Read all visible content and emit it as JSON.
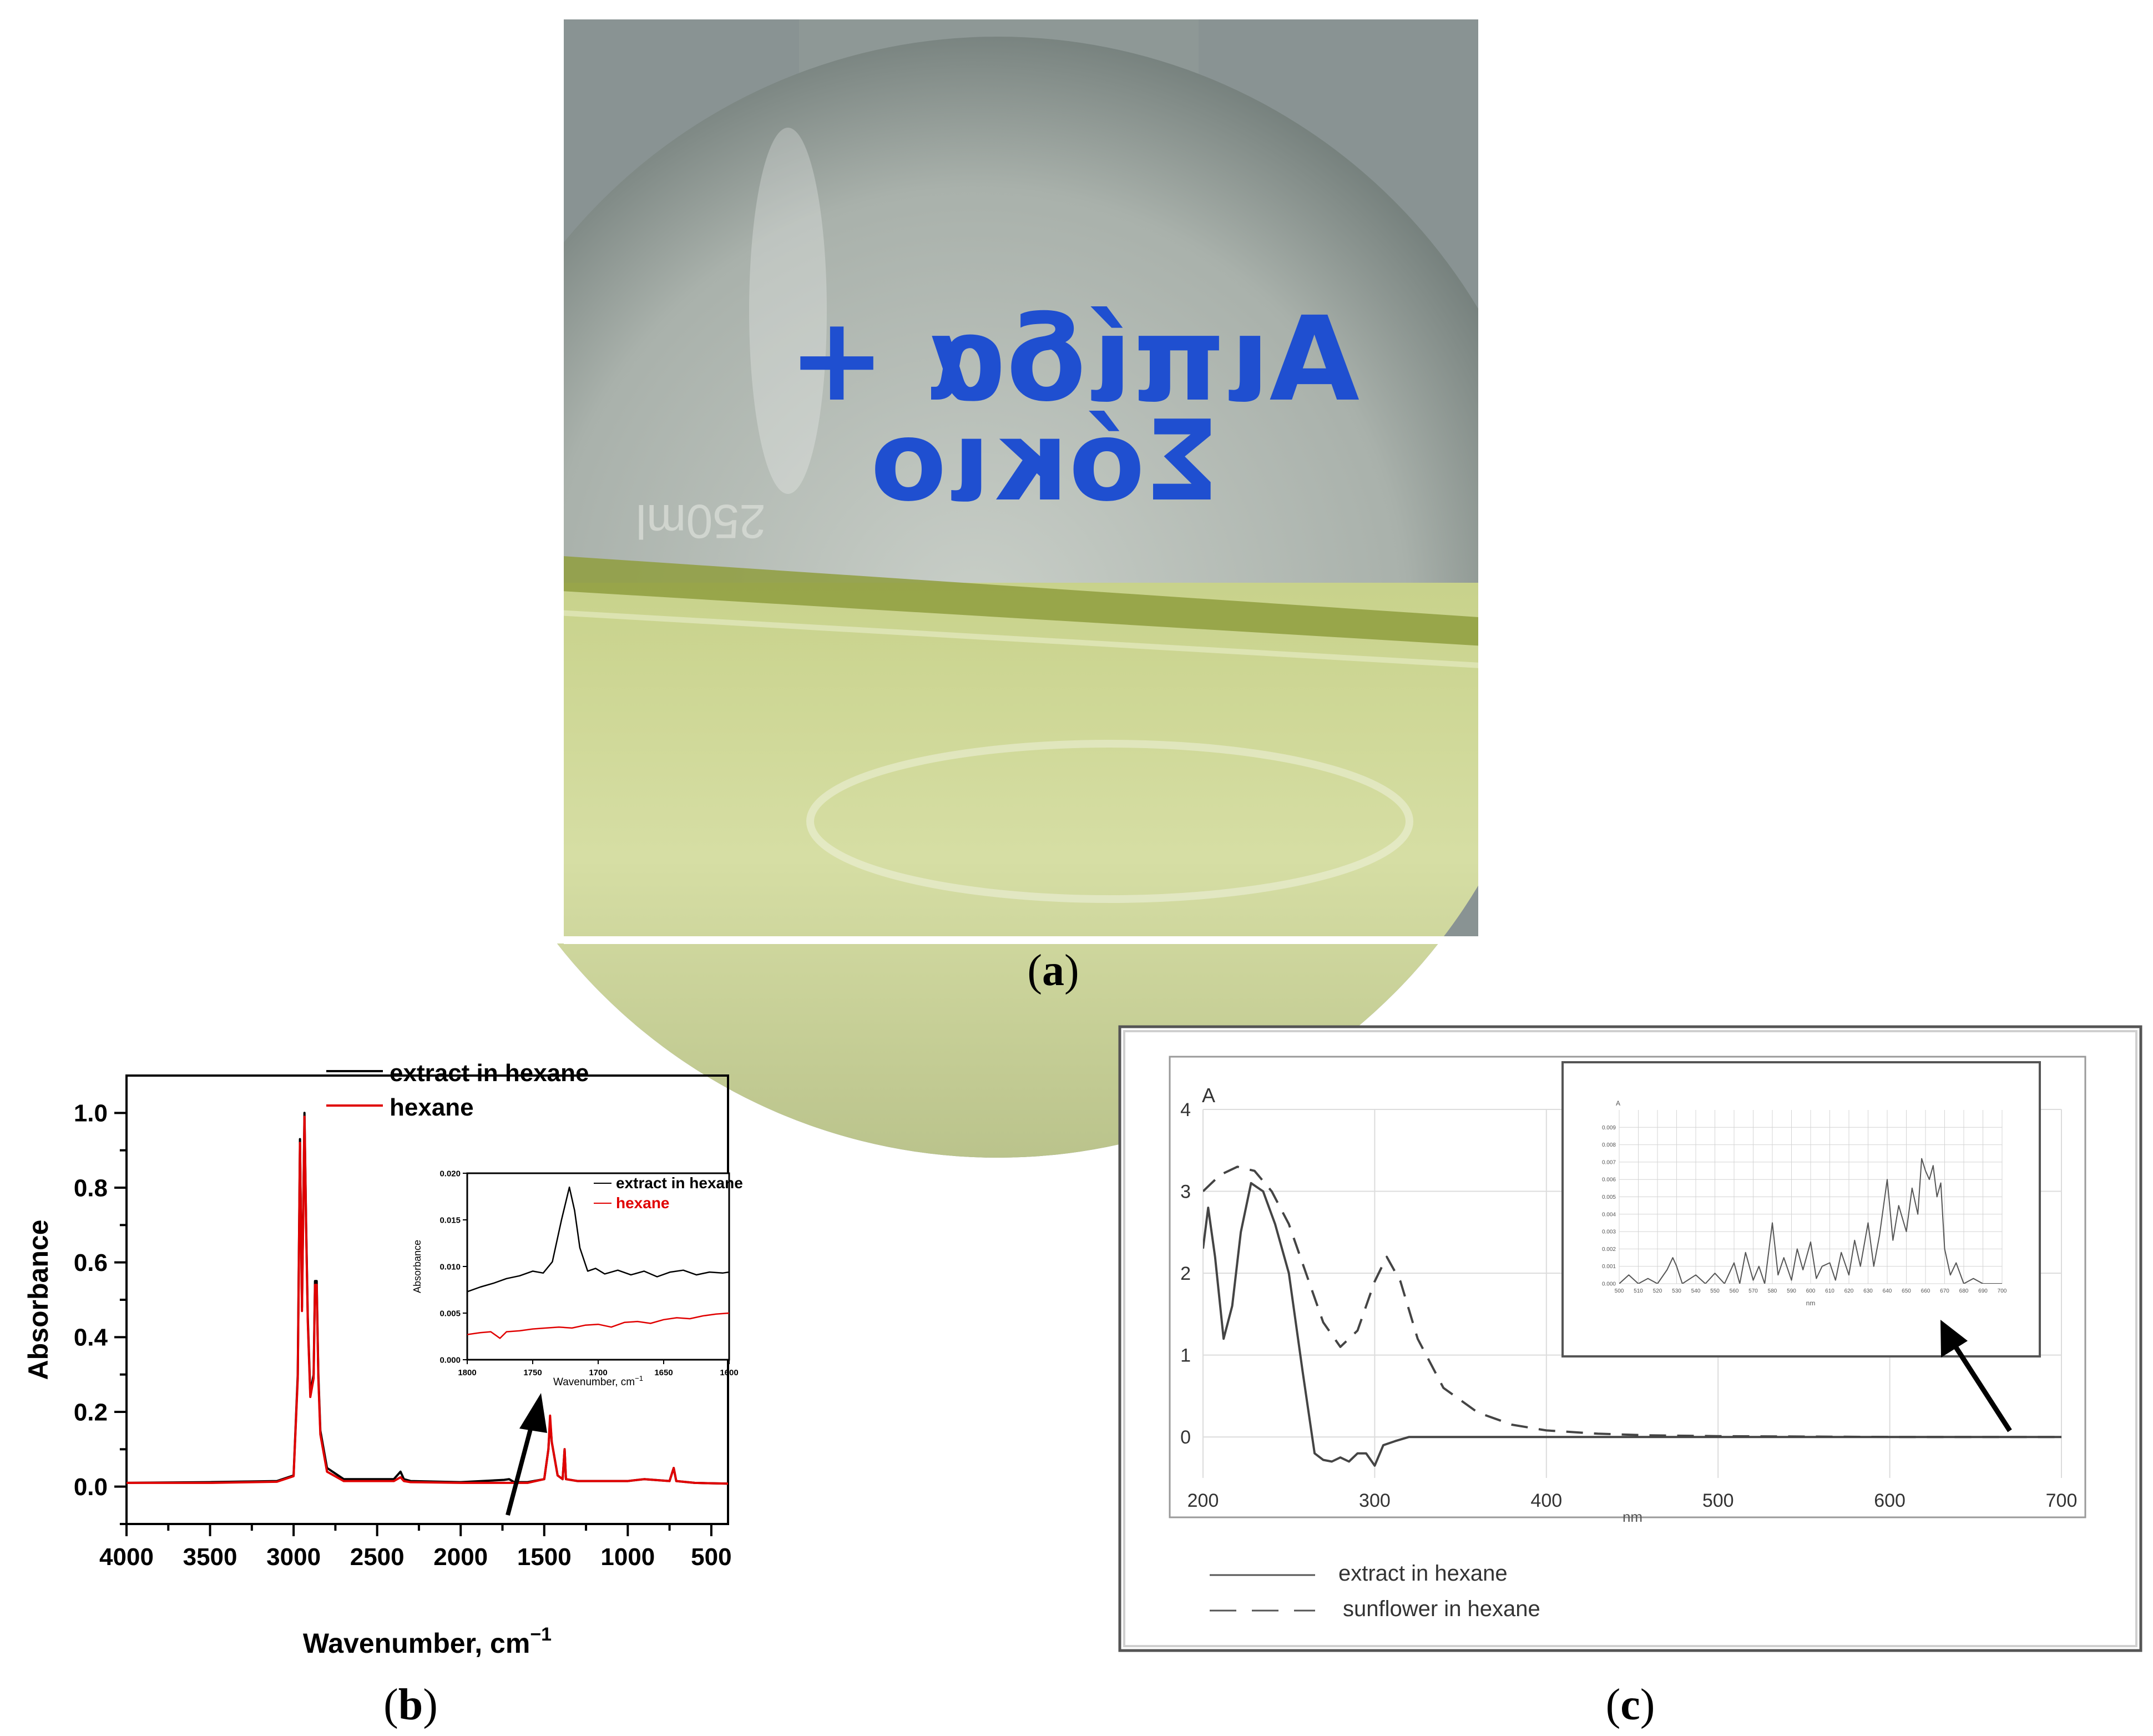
{
  "panel_labels": {
    "a": "a",
    "b": "b",
    "c": "c"
  },
  "photo": {
    "label_line1": "Αιπίδα +",
    "label_line2": "Σόκιο",
    "flask_mark": "250ml",
    "colors": {
      "background": "#6f7d7e",
      "liquid": "#d2db9a",
      "ink": "#1f4fd0",
      "surface_band": "#8f9d3e"
    }
  },
  "chart_data": [
    {
      "type": "line",
      "panel": "b",
      "xlabel": "Wavenumber, cm",
      "xlabel_sup": "−1",
      "ylabel": "Absorbance",
      "xlim": [
        4000,
        400
      ],
      "ylim": [
        -0.1,
        1.1
      ],
      "xticks": [
        4000,
        3500,
        3000,
        2500,
        2000,
        1500,
        1000,
        500
      ],
      "xtick_labels": [
        "4000",
        "3500",
        "3000",
        "2500",
        "2000",
        "1500",
        "1000",
        "500"
      ],
      "yticks": [
        0.0,
        0.2,
        0.4,
        0.6,
        0.8,
        1.0
      ],
      "ytick_labels": [
        "0.0",
        "0.2",
        "0.4",
        "0.6",
        "0.8",
        "1.0"
      ],
      "legend_position": "top-center",
      "series": [
        {
          "name": "extract in hexane",
          "color": "#000000",
          "x": [
            4000,
            3500,
            3100,
            3000,
            2975,
            2962,
            2950,
            2935,
            2925,
            2915,
            2900,
            2880,
            2872,
            2862,
            2852,
            2840,
            2800,
            2700,
            2400,
            2360,
            2340,
            2300,
            2000,
            1740,
            1710,
            1680,
            1600,
            1500,
            1475,
            1465,
            1455,
            1420,
            1390,
            1378,
            1370,
            1300,
            1000,
            900,
            750,
            725,
            710,
            600,
            400
          ],
          "y": [
            0.01,
            0.012,
            0.015,
            0.03,
            0.3,
            0.93,
            0.48,
            1.0,
            0.7,
            0.45,
            0.25,
            0.3,
            0.55,
            0.55,
            0.3,
            0.15,
            0.05,
            0.02,
            0.02,
            0.04,
            0.02,
            0.015,
            0.012,
            0.018,
            0.02,
            0.012,
            0.012,
            0.02,
            0.1,
            0.18,
            0.12,
            0.03,
            0.02,
            0.1,
            0.02,
            0.015,
            0.015,
            0.02,
            0.015,
            0.05,
            0.015,
            0.01,
            0.008
          ]
        },
        {
          "name": "hexane",
          "color": "#e00000",
          "x": [
            4000,
            3500,
            3100,
            3000,
            2975,
            2962,
            2950,
            2935,
            2925,
            2915,
            2900,
            2880,
            2872,
            2862,
            2852,
            2840,
            2800,
            2700,
            2400,
            2360,
            2340,
            2300,
            2000,
            1740,
            1710,
            1680,
            1600,
            1500,
            1475,
            1465,
            1455,
            1420,
            1390,
            1378,
            1370,
            1300,
            1000,
            900,
            750,
            725,
            710,
            600,
            400
          ],
          "y": [
            0.01,
            0.01,
            0.013,
            0.028,
            0.29,
            0.92,
            0.47,
            0.99,
            0.69,
            0.44,
            0.24,
            0.29,
            0.54,
            0.54,
            0.29,
            0.14,
            0.04,
            0.015,
            0.015,
            0.025,
            0.015,
            0.012,
            0.01,
            0.01,
            0.01,
            0.01,
            0.01,
            0.02,
            0.1,
            0.19,
            0.12,
            0.03,
            0.02,
            0.1,
            0.02,
            0.015,
            0.015,
            0.02,
            0.015,
            0.05,
            0.015,
            0.01,
            0.008
          ]
        }
      ]
    },
    {
      "type": "line",
      "panel": "b-inset",
      "xlabel": "Wavenumber, cm",
      "xlabel_sup": "−1",
      "ylabel": "Absorbance",
      "xlim": [
        1800,
        1600
      ],
      "ylim": [
        0.0,
        0.02
      ],
      "xticks": [
        1800,
        1750,
        1700,
        1650,
        1600
      ],
      "xtick_labels": [
        "1800",
        "1750",
        "1700",
        "1650",
        "1600"
      ],
      "yticks": [
        0.0,
        0.005,
        0.01,
        0.015,
        0.02
      ],
      "ytick_labels": [
        "0.000",
        "0.005",
        "0.010",
        "0.015",
        "0.020"
      ],
      "legend_position": "top-right",
      "series": [
        {
          "name": "extract in hexane",
          "color": "#000000",
          "x": [
            1800,
            1790,
            1780,
            1770,
            1760,
            1750,
            1742,
            1735,
            1728,
            1722,
            1718,
            1714,
            1708,
            1702,
            1695,
            1685,
            1675,
            1665,
            1655,
            1645,
            1635,
            1625,
            1615,
            1605,
            1600
          ],
          "y": [
            0.0073,
            0.0078,
            0.0082,
            0.0087,
            0.009,
            0.0095,
            0.0093,
            0.0105,
            0.015,
            0.0185,
            0.016,
            0.012,
            0.0095,
            0.0098,
            0.0092,
            0.0096,
            0.0091,
            0.0095,
            0.0089,
            0.0094,
            0.0096,
            0.0091,
            0.0094,
            0.0093,
            0.0094
          ]
        },
        {
          "name": "hexane",
          "color": "#e00000",
          "x": [
            1800,
            1790,
            1782,
            1775,
            1770,
            1760,
            1750,
            1740,
            1730,
            1720,
            1710,
            1700,
            1690,
            1680,
            1670,
            1660,
            1650,
            1640,
            1630,
            1620,
            1610,
            1600
          ],
          "y": [
            0.0027,
            0.0029,
            0.003,
            0.0023,
            0.003,
            0.0031,
            0.0033,
            0.0034,
            0.0035,
            0.0034,
            0.0037,
            0.0038,
            0.0035,
            0.004,
            0.0041,
            0.0039,
            0.0043,
            0.0045,
            0.0044,
            0.0047,
            0.0049,
            0.005
          ]
        }
      ]
    },
    {
      "type": "line",
      "panel": "c",
      "xlabel": "nm",
      "ylabel": "A",
      "xlim": [
        200,
        700
      ],
      "ylim": [
        -0.5,
        4
      ],
      "xticks": [
        200,
        300,
        400,
        500,
        600,
        700
      ],
      "xtick_labels": [
        "200",
        "300",
        "400",
        "500",
        "600",
        "700"
      ],
      "yticks": [
        0,
        1,
        2,
        3,
        4
      ],
      "ytick_labels": [
        "0",
        "1",
        "2",
        "3",
        "4"
      ],
      "legend_position": "bottom-left",
      "series": [
        {
          "name": "extract in hexane",
          "style": "solid",
          "color": "#444444",
          "x": [
            200,
            203,
            207,
            212,
            217,
            222,
            228,
            235,
            242,
            250,
            258,
            265,
            270,
            275,
            280,
            285,
            290,
            295,
            300,
            305,
            312,
            320,
            350,
            400,
            450,
            500,
            600,
            700
          ],
          "y": [
            2.3,
            2.8,
            2.2,
            1.2,
            1.6,
            2.5,
            3.1,
            3.0,
            2.6,
            2.0,
            0.8,
            -0.2,
            -0.28,
            -0.3,
            -0.25,
            -0.3,
            -0.2,
            -0.2,
            -0.35,
            -0.1,
            -0.05,
            0.0,
            0.0,
            0.0,
            0.0,
            0.0,
            0.0,
            0.0
          ]
        },
        {
          "name": "sunflower in hexane",
          "style": "dashed",
          "color": "#444444",
          "x": [
            200,
            210,
            220,
            230,
            240,
            250,
            260,
            270,
            280,
            290,
            300,
            307,
            315,
            325,
            340,
            360,
            380,
            400,
            430,
            460,
            500,
            600,
            700
          ],
          "y": [
            3.0,
            3.2,
            3.3,
            3.25,
            3.0,
            2.6,
            2.0,
            1.4,
            1.1,
            1.3,
            1.9,
            2.2,
            1.9,
            1.2,
            0.6,
            0.3,
            0.15,
            0.08,
            0.04,
            0.02,
            0.01,
            0.0,
            0.0
          ]
        }
      ]
    },
    {
      "type": "line",
      "panel": "c-inset",
      "xlabel": "nm",
      "ylabel": "A",
      "xlim": [
        500,
        700
      ],
      "ylim": [
        0,
        0.01
      ],
      "xticks": [
        500,
        510,
        520,
        530,
        540,
        550,
        560,
        570,
        580,
        590,
        600,
        610,
        620,
        630,
        640,
        650,
        660,
        670,
        680,
        690,
        700
      ],
      "xtick_labels": [
        "500",
        "510",
        "520",
        "530",
        "540",
        "550",
        "560",
        "570",
        "580",
        "590",
        "600",
        "610",
        "620",
        "630",
        "640",
        "650",
        "660",
        "670",
        "680",
        "690",
        "700"
      ],
      "yticks": [
        0,
        0.001,
        0.002,
        0.003,
        0.004,
        0.005,
        0.006,
        0.007,
        0.008,
        0.009
      ],
      "ytick_labels": [
        "0.000",
        "0.001",
        "0.002",
        "0.003",
        "0.004",
        "0.005",
        "0.006",
        "0.007",
        "0.008",
        "0.009"
      ],
      "series": [
        {
          "name": "extract in hexane",
          "style": "solid",
          "color": "#555555",
          "x": [
            500,
            505,
            510,
            515,
            520,
            525,
            528,
            530,
            533,
            540,
            545,
            550,
            555,
            560,
            563,
            566,
            570,
            573,
            576,
            580,
            583,
            586,
            590,
            593,
            596,
            600,
            603,
            606,
            610,
            613,
            616,
            620,
            623,
            626,
            630,
            633,
            636,
            640,
            643,
            646,
            650,
            653,
            656,
            658,
            660,
            662,
            664,
            666,
            668,
            670,
            673,
            676,
            680,
            685,
            690,
            700
          ],
          "y": [
            0.0,
            0.0005,
            0.0,
            0.0003,
            0.0,
            0.0008,
            0.0015,
            0.001,
            0.0,
            0.0005,
            0.0,
            0.0006,
            0.0,
            0.0012,
            0.0,
            0.0018,
            0.0002,
            0.001,
            0.0,
            0.0035,
            0.0005,
            0.0015,
            0.0002,
            0.002,
            0.0008,
            0.0024,
            0.0003,
            0.001,
            0.0012,
            0.0002,
            0.0018,
            0.0005,
            0.0025,
            0.001,
            0.0035,
            0.001,
            0.0028,
            0.006,
            0.0025,
            0.0045,
            0.003,
            0.0055,
            0.004,
            0.0072,
            0.0065,
            0.006,
            0.0068,
            0.005,
            0.0058,
            0.002,
            0.0005,
            0.0012,
            0.0,
            0.0003,
            0.0,
            0.0
          ]
        }
      ]
    }
  ],
  "legends": {
    "b": [
      "extract in hexane",
      "hexane"
    ],
    "b_inset": [
      "extract in hexane",
      "hexane"
    ],
    "c": [
      "extract in hexane",
      "sunflower in hexane"
    ]
  }
}
